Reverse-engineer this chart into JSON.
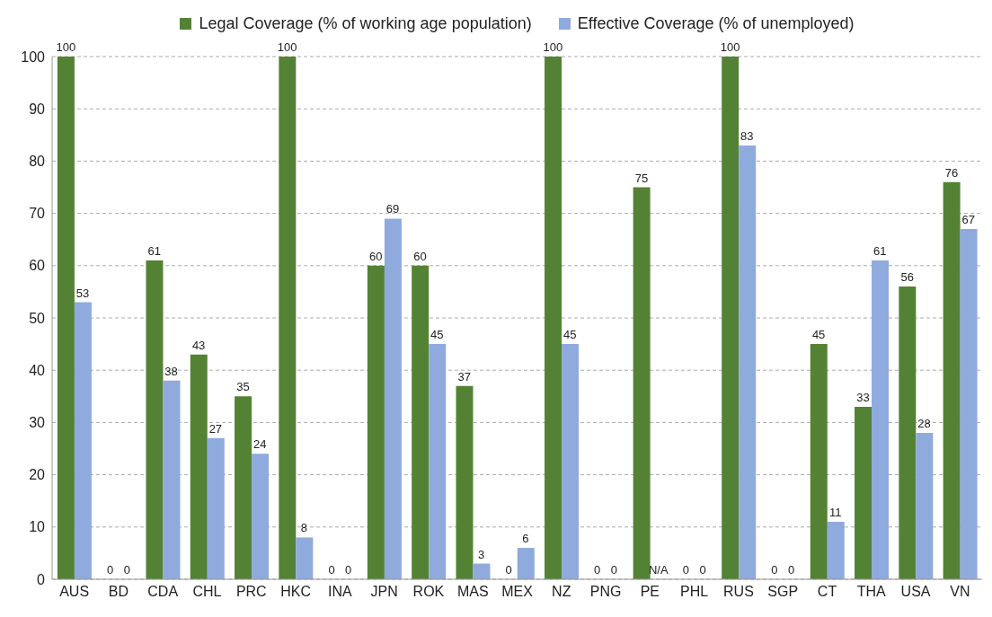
{
  "chart_data": {
    "type": "bar",
    "categories": [
      "AUS",
      "BD",
      "CDA",
      "CHL",
      "PRC",
      "HKC",
      "INA",
      "JPN",
      "ROK",
      "MAS",
      "MEX",
      "NZ",
      "PNG",
      "PE",
      "PHL",
      "RUS",
      "SGP",
      "CT",
      "THA",
      "USA",
      "VN"
    ],
    "series": [
      {
        "name": "Legal Coverage (% of working age population)",
        "color": "#548235",
        "values": [
          100,
          0,
          61,
          43,
          35,
          100,
          0,
          60,
          60,
          37,
          0,
          100,
          0,
          75,
          0,
          100,
          0,
          45,
          33,
          56,
          76
        ],
        "value_labels": [
          "100",
          "0",
          "61",
          "43",
          "35",
          "100",
          "0",
          "60",
          "60",
          "37",
          "0",
          "100",
          "0",
          "75",
          "0",
          "100",
          "0",
          "45",
          "33",
          "56",
          "76"
        ]
      },
      {
        "name": "Effective Coverage (% of unemployed)",
        "color": "#8faadc",
        "values": [
          53,
          0,
          38,
          27,
          24,
          8,
          0,
          69,
          45,
          3,
          6,
          45,
          0,
          null,
          0,
          83,
          0,
          11,
          61,
          28,
          67
        ],
        "value_labels": [
          "53",
          "0",
          "38",
          "27",
          "24",
          "8",
          "0",
          "69",
          "45",
          "3",
          "6",
          "45",
          "0",
          "N/A",
          "0",
          "83",
          "0",
          "11",
          "61",
          "28",
          "67"
        ]
      }
    ],
    "ylim": [
      0,
      100
    ],
    "yticks": [
      0,
      10,
      20,
      30,
      40,
      50,
      60,
      70,
      80,
      90,
      100
    ],
    "grid": "y",
    "legend": "top"
  }
}
